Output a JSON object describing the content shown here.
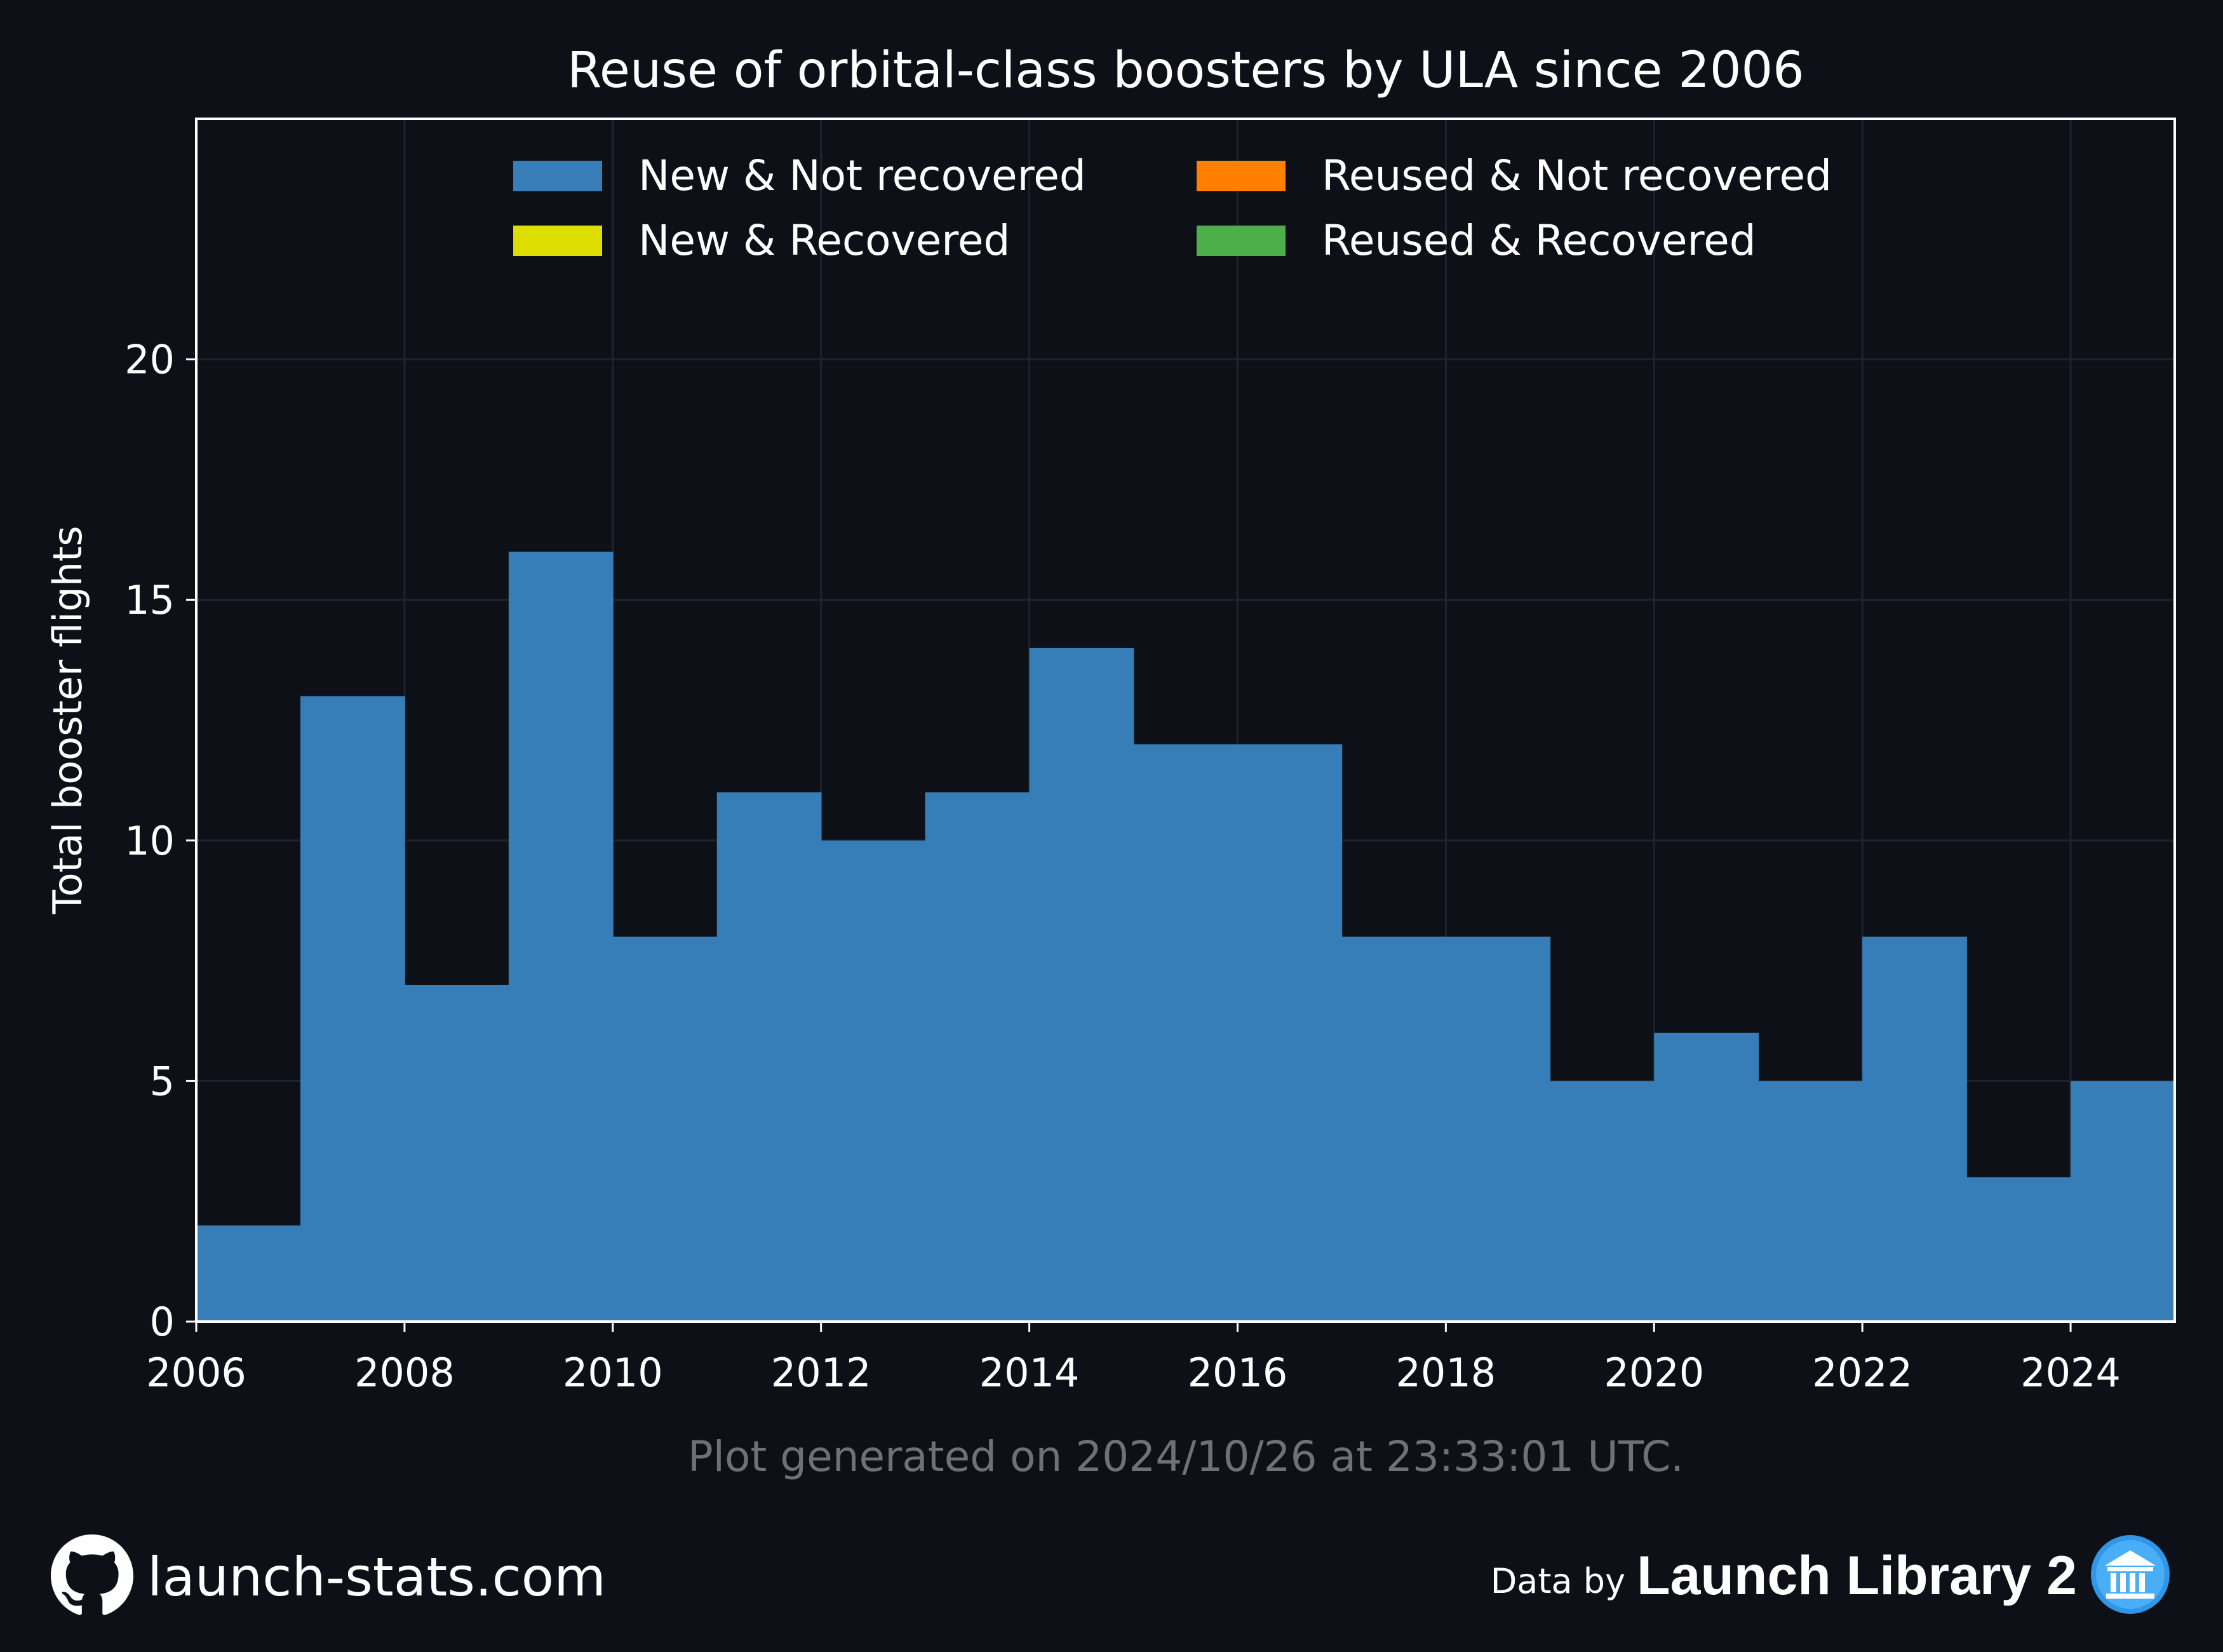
{
  "chart_data": {
    "type": "bar",
    "title": "Reuse of orbital-class boosters by ULA since 2006",
    "ylabel": "Total booster flights",
    "xlabel": "",
    "x_bins": [
      2006,
      2007,
      2008,
      2009,
      2010,
      2011,
      2012,
      2013,
      2014,
      2015,
      2016,
      2017,
      2018,
      2019,
      2020,
      2021,
      2022,
      2023,
      2024
    ],
    "series": [
      {
        "name": "New & Not recovered",
        "color": "#377eb8",
        "values": [
          2,
          13,
          7,
          16,
          8,
          11,
          10,
          11,
          14,
          12,
          12,
          8,
          8,
          5,
          6,
          5,
          8,
          3,
          5
        ]
      },
      {
        "name": "New & Recovered",
        "color": "#dede00",
        "values": [
          0,
          0,
          0,
          0,
          0,
          0,
          0,
          0,
          0,
          0,
          0,
          0,
          0,
          0,
          0,
          0,
          0,
          0,
          0
        ]
      },
      {
        "name": "Reused & Not recovered",
        "color": "#ff7f00",
        "values": [
          0,
          0,
          0,
          0,
          0,
          0,
          0,
          0,
          0,
          0,
          0,
          0,
          0,
          0,
          0,
          0,
          0,
          0,
          0
        ]
      },
      {
        "name": "Reused & Recovered",
        "color": "#4daf4a",
        "values": [
          0,
          0,
          0,
          0,
          0,
          0,
          0,
          0,
          0,
          0,
          0,
          0,
          0,
          0,
          0,
          0,
          0,
          0,
          0
        ]
      }
    ],
    "xlim": [
      2006,
      2025
    ],
    "ylim": [
      0,
      25
    ],
    "x_ticks": [
      "2006",
      "2008",
      "2010",
      "2012",
      "2014",
      "2016",
      "2018",
      "2020",
      "2022",
      "2024"
    ],
    "y_ticks": [
      "0",
      "5",
      "10",
      "15",
      "20"
    ],
    "stacked": true,
    "grid": true,
    "legend_position": "top"
  },
  "footer": {
    "generated": "Plot generated on 2024/10/26 at 23:33:01 UTC.",
    "site": "launch-stats.com",
    "data_by": "Data by",
    "source": "Launch Library 2",
    "github_icon": "github-icon",
    "library_icon": "library-icon"
  },
  "colors": {
    "background": "#0d1117",
    "grid": "#1e242d",
    "axis": "#ffffff",
    "muted": "#6e7177"
  }
}
